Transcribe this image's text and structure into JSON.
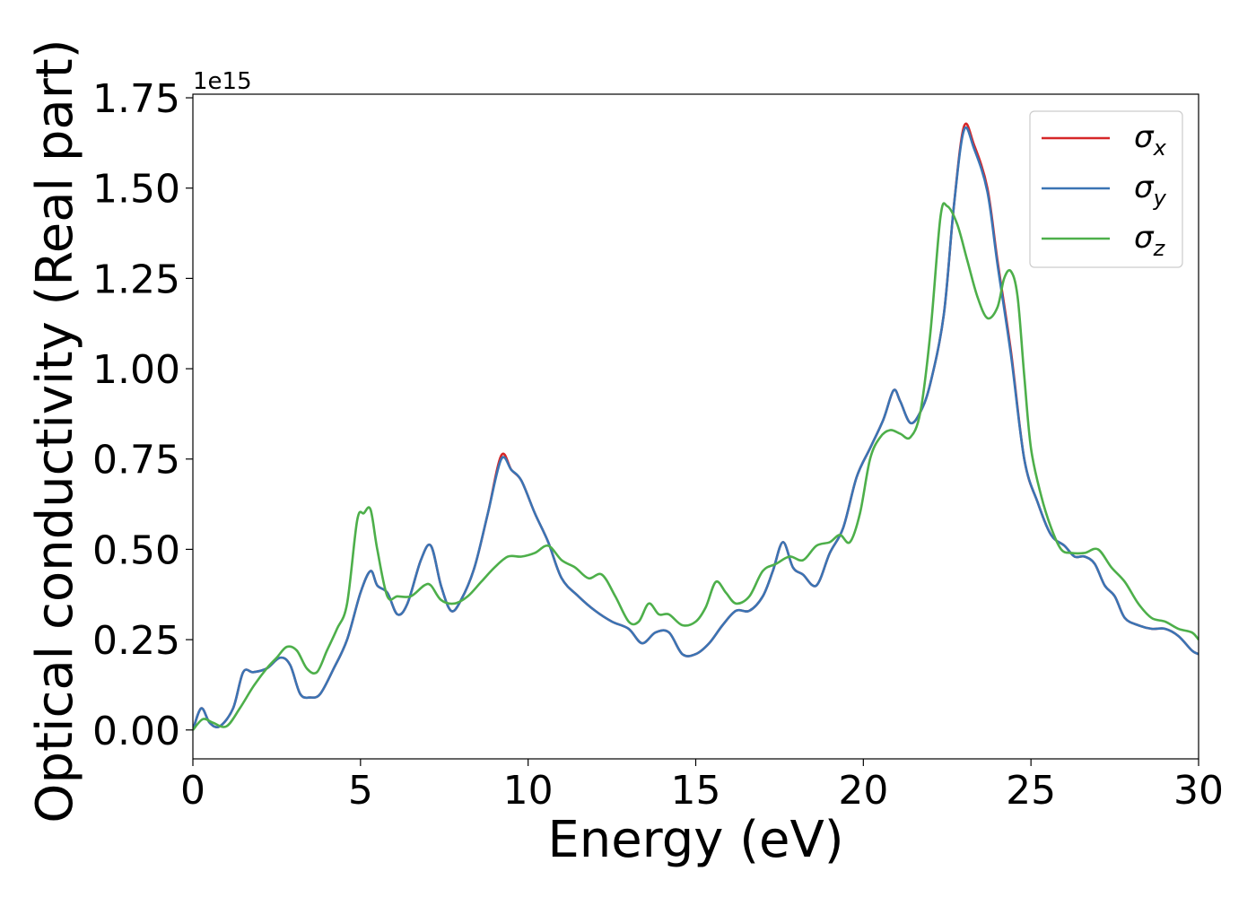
{
  "chart_data": {
    "type": "line",
    "xlabel": "Energy (eV)",
    "ylabel": "Optical conductivity (Real part)",
    "offset_label": "1e15",
    "xlim": [
      0,
      30
    ],
    "ylim": [
      -0.08,
      1.76
    ],
    "y_multiplier": 1000000000000000.0,
    "xticks": [
      0,
      5,
      10,
      15,
      20,
      25,
      30
    ],
    "xtick_labels": [
      "0",
      "5",
      "10",
      "15",
      "20",
      "25",
      "30"
    ],
    "yticks": [
      0.0,
      0.25,
      0.5,
      0.75,
      1.0,
      1.25,
      1.5,
      1.75
    ],
    "ytick_labels": [
      "0.00",
      "0.25",
      "0.50",
      "0.75",
      "1.00",
      "1.25",
      "1.50",
      "1.75"
    ],
    "grid": false,
    "legend": {
      "position": "top-right"
    },
    "series": [
      {
        "name": "σx",
        "legend_main": "σ",
        "legend_sub": "x",
        "color": "#d62728",
        "x": [
          0,
          0.25,
          0.5,
          0.8,
          1.2,
          1.5,
          1.8,
          2.2,
          2.6,
          2.9,
          3.2,
          3.5,
          3.8,
          4.2,
          4.6,
          5.0,
          5.3,
          5.5,
          5.8,
          6.1,
          6.4,
          6.8,
          7.1,
          7.4,
          7.7,
          8.0,
          8.4,
          8.8,
          9.2,
          9.5,
          9.8,
          10.2,
          10.6,
          11.0,
          11.5,
          12.0,
          12.5,
          13.0,
          13.4,
          13.8,
          14.2,
          14.6,
          15.0,
          15.4,
          15.8,
          16.2,
          16.6,
          17.0,
          17.3,
          17.6,
          17.9,
          18.2,
          18.6,
          19.0,
          19.4,
          19.8,
          20.2,
          20.6,
          20.9,
          21.1,
          21.4,
          21.7,
          22.0,
          22.4,
          22.7,
          23.0,
          23.3,
          23.7,
          24.0,
          24.4,
          24.8,
          25.2,
          25.6,
          26.0,
          26.3,
          26.6,
          26.9,
          27.2,
          27.5,
          27.8,
          28.2,
          28.6,
          29.0,
          29.4,
          29.8,
          30.0
        ],
        "values": [
          0.0,
          0.06,
          0.02,
          0.01,
          0.06,
          0.16,
          0.16,
          0.17,
          0.2,
          0.18,
          0.1,
          0.09,
          0.1,
          0.17,
          0.25,
          0.38,
          0.44,
          0.4,
          0.38,
          0.32,
          0.35,
          0.47,
          0.51,
          0.4,
          0.33,
          0.36,
          0.45,
          0.6,
          0.76,
          0.72,
          0.69,
          0.6,
          0.52,
          0.42,
          0.37,
          0.33,
          0.3,
          0.28,
          0.24,
          0.27,
          0.27,
          0.21,
          0.21,
          0.24,
          0.29,
          0.33,
          0.33,
          0.37,
          0.44,
          0.52,
          0.45,
          0.43,
          0.4,
          0.49,
          0.56,
          0.7,
          0.78,
          0.86,
          0.94,
          0.91,
          0.85,
          0.88,
          0.96,
          1.15,
          1.45,
          1.67,
          1.62,
          1.5,
          1.3,
          1.05,
          0.75,
          0.63,
          0.54,
          0.51,
          0.48,
          0.48,
          0.46,
          0.4,
          0.37,
          0.31,
          0.29,
          0.28,
          0.28,
          0.26,
          0.22,
          0.21
        ]
      },
      {
        "name": "σy",
        "legend_main": "σ",
        "legend_sub": "y",
        "color": "#3a74b4",
        "x": [
          0,
          0.25,
          0.5,
          0.8,
          1.2,
          1.5,
          1.8,
          2.2,
          2.6,
          2.9,
          3.2,
          3.5,
          3.8,
          4.2,
          4.6,
          5.0,
          5.3,
          5.5,
          5.8,
          6.1,
          6.4,
          6.8,
          7.1,
          7.4,
          7.7,
          8.0,
          8.4,
          8.8,
          9.2,
          9.5,
          9.8,
          10.2,
          10.6,
          11.0,
          11.5,
          12.0,
          12.5,
          13.0,
          13.4,
          13.8,
          14.2,
          14.6,
          15.0,
          15.4,
          15.8,
          16.2,
          16.6,
          17.0,
          17.3,
          17.6,
          17.9,
          18.2,
          18.6,
          19.0,
          19.4,
          19.8,
          20.2,
          20.6,
          20.9,
          21.1,
          21.4,
          21.7,
          22.0,
          22.4,
          22.7,
          23.0,
          23.3,
          23.7,
          24.0,
          24.4,
          24.8,
          25.2,
          25.6,
          26.0,
          26.3,
          26.6,
          26.9,
          27.2,
          27.5,
          27.8,
          28.2,
          28.6,
          29.0,
          29.4,
          29.8,
          30.0
        ],
        "values": [
          0.0,
          0.06,
          0.02,
          0.01,
          0.06,
          0.16,
          0.16,
          0.17,
          0.2,
          0.18,
          0.1,
          0.09,
          0.1,
          0.17,
          0.25,
          0.38,
          0.44,
          0.4,
          0.38,
          0.32,
          0.35,
          0.47,
          0.51,
          0.4,
          0.33,
          0.36,
          0.45,
          0.6,
          0.75,
          0.72,
          0.69,
          0.6,
          0.52,
          0.42,
          0.37,
          0.33,
          0.3,
          0.28,
          0.24,
          0.27,
          0.27,
          0.21,
          0.21,
          0.24,
          0.29,
          0.33,
          0.33,
          0.37,
          0.44,
          0.52,
          0.45,
          0.43,
          0.4,
          0.49,
          0.56,
          0.7,
          0.78,
          0.86,
          0.94,
          0.91,
          0.85,
          0.88,
          0.96,
          1.15,
          1.45,
          1.66,
          1.61,
          1.49,
          1.29,
          1.04,
          0.75,
          0.63,
          0.54,
          0.51,
          0.48,
          0.48,
          0.46,
          0.4,
          0.37,
          0.31,
          0.29,
          0.28,
          0.28,
          0.26,
          0.22,
          0.21
        ]
      },
      {
        "name": "σz",
        "legend_main": "σ",
        "legend_sub": "z",
        "color": "#4daf4a",
        "x": [
          0,
          0.3,
          0.6,
          1.0,
          1.4,
          1.8,
          2.2,
          2.5,
          2.8,
          3.1,
          3.4,
          3.7,
          4.0,
          4.3,
          4.6,
          4.9,
          5.1,
          5.3,
          5.5,
          5.8,
          6.1,
          6.5,
          6.9,
          7.1,
          7.4,
          7.8,
          8.2,
          8.6,
          9.0,
          9.4,
          9.8,
          10.2,
          10.6,
          11.0,
          11.4,
          11.8,
          12.2,
          12.6,
          13.0,
          13.3,
          13.6,
          13.9,
          14.2,
          14.6,
          15.0,
          15.3,
          15.6,
          15.9,
          16.2,
          16.6,
          17.0,
          17.4,
          17.8,
          18.2,
          18.6,
          19.0,
          19.3,
          19.6,
          19.9,
          20.2,
          20.5,
          20.8,
          21.1,
          21.4,
          21.7,
          22.0,
          22.3,
          22.5,
          22.8,
          23.1,
          23.4,
          23.7,
          24.0,
          24.2,
          24.4,
          24.6,
          24.8,
          25.0,
          25.3,
          25.6,
          25.9,
          26.2,
          26.6,
          27.0,
          27.4,
          27.8,
          28.2,
          28.6,
          29.0,
          29.4,
          29.8,
          30.0
        ],
        "values": [
          0.0,
          0.03,
          0.02,
          0.01,
          0.06,
          0.12,
          0.17,
          0.2,
          0.23,
          0.22,
          0.17,
          0.16,
          0.22,
          0.28,
          0.35,
          0.58,
          0.6,
          0.61,
          0.5,
          0.37,
          0.37,
          0.37,
          0.4,
          0.4,
          0.36,
          0.35,
          0.37,
          0.41,
          0.45,
          0.48,
          0.48,
          0.49,
          0.51,
          0.47,
          0.45,
          0.42,
          0.43,
          0.37,
          0.3,
          0.3,
          0.35,
          0.32,
          0.32,
          0.29,
          0.3,
          0.34,
          0.41,
          0.38,
          0.35,
          0.37,
          0.44,
          0.46,
          0.48,
          0.47,
          0.51,
          0.52,
          0.54,
          0.52,
          0.6,
          0.75,
          0.81,
          0.83,
          0.82,
          0.81,
          0.88,
          1.1,
          1.42,
          1.45,
          1.4,
          1.3,
          1.2,
          1.14,
          1.17,
          1.25,
          1.27,
          1.2,
          0.98,
          0.78,
          0.65,
          0.56,
          0.5,
          0.49,
          0.49,
          0.5,
          0.45,
          0.41,
          0.35,
          0.31,
          0.3,
          0.28,
          0.27,
          0.25
        ]
      }
    ]
  }
}
